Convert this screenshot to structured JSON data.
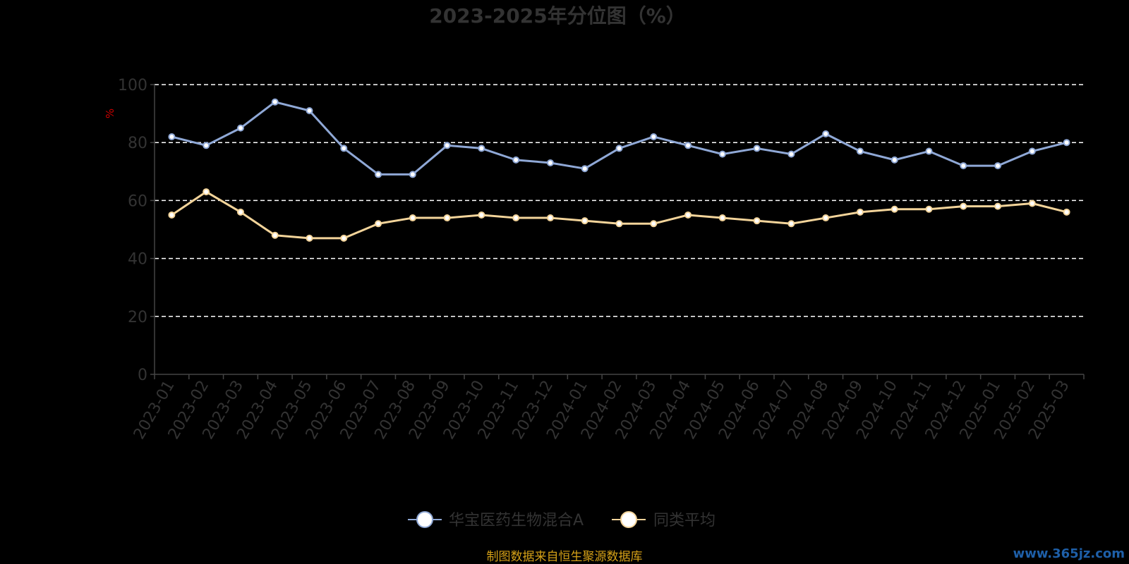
{
  "chart_data": {
    "type": "line",
    "title": "2023-2025年分位图（%）",
    "ylabel": "%",
    "ylim": [
      0,
      100
    ],
    "yticks": [
      0,
      20,
      40,
      60,
      80,
      100
    ],
    "grid": true,
    "legend_position": "bottom",
    "categories": [
      "2023-01",
      "2023-02",
      "2023-03",
      "2023-04",
      "2023-05",
      "2023-06",
      "2023-07",
      "2023-08",
      "2023-09",
      "2023-10",
      "2023-11",
      "2023-12",
      "2024-01",
      "2024-02",
      "2024-03",
      "2024-04",
      "2024-05",
      "2024-06",
      "2024-07",
      "2024-08",
      "2024-09",
      "2024-10",
      "2024-11",
      "2024-12",
      "2025-01",
      "2025-02",
      "2025-03"
    ],
    "series": [
      {
        "name": "华宝医药生物混合A",
        "color": "#8fa8d6",
        "values": [
          82,
          79,
          85,
          94,
          91,
          78,
          69,
          69,
          79,
          78,
          74,
          73,
          71,
          78,
          82,
          79,
          76,
          78,
          76,
          83,
          77,
          74,
          77,
          72,
          72,
          77,
          80
        ]
      },
      {
        "name": "同类平均",
        "color": "#f3d49a",
        "values": [
          55,
          63,
          56,
          48,
          47,
          47,
          52,
          54,
          54,
          55,
          54,
          54,
          53,
          52,
          52,
          55,
          54,
          53,
          52,
          54,
          56,
          57,
          57,
          58,
          58,
          59,
          56
        ]
      }
    ]
  },
  "footer": "制图数据来自恒生聚源数据库",
  "watermark": "www.365jz.com"
}
